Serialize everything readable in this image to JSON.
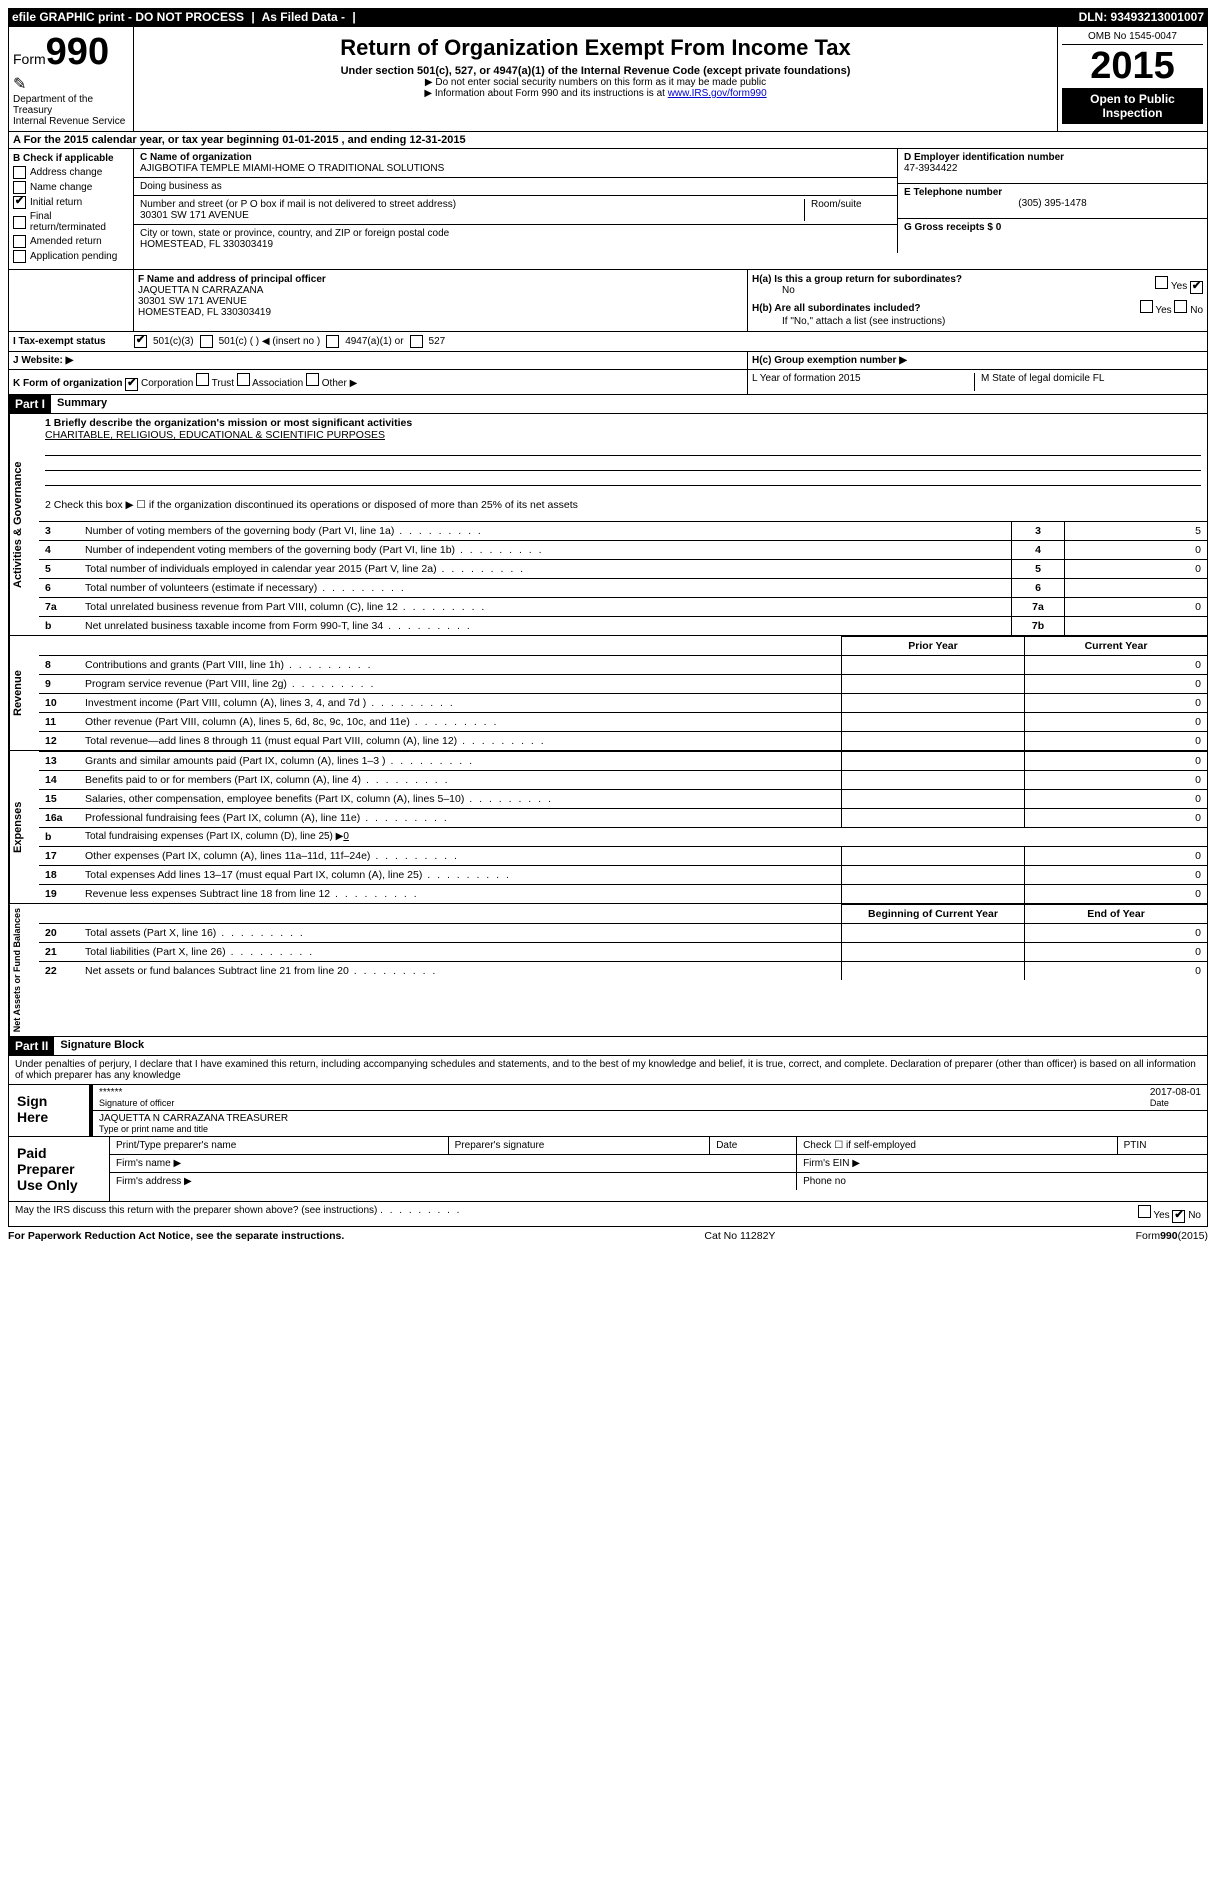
{
  "top_bar": {
    "efile": "efile GRAPHIC print - DO NOT PROCESS",
    "as_filed": "As Filed Data -",
    "dln": "DLN: 93493213001007"
  },
  "header": {
    "form_prefix": "Form",
    "form_number": "990",
    "dept": "Department of the Treasury",
    "irs": "Internal Revenue Service",
    "title": "Return of Organization Exempt From Income Tax",
    "subtitle": "Under section 501(c), 527, or 4947(a)(1) of the Internal Revenue Code (except private foundations)",
    "note1": "▶ Do not enter social security numbers on this form as it may be made public",
    "note2_prefix": "▶ Information about Form 990 and its instructions is at ",
    "note2_link": "www.IRS.gov/form990",
    "omb": "OMB No 1545-0047",
    "year": "2015",
    "inspection": "Open to Public Inspection"
  },
  "row_a": "A  For the 2015 calendar year, or tax year beginning 01-01-2015    , and ending 12-31-2015",
  "section_b": {
    "label": "B Check if applicable",
    "items": [
      "Address change",
      "Name change",
      "Initial return",
      "Final return/terminated",
      "Amended return",
      "Application pending"
    ],
    "checked_idx": 2
  },
  "section_c": {
    "name_label": "C Name of organization",
    "name": "AJIGBOTIFA TEMPLE MIAMI-HOME O TRADITIONAL SOLUTIONS",
    "dba_label": "Doing business as",
    "addr_label": "Number and street (or P O  box if mail is not delivered to street address)",
    "room_label": "Room/suite",
    "addr": "30301 SW 171 AVENUE",
    "city_label": "City or town, state or province, country, and ZIP or foreign postal code",
    "city": "HOMESTEAD, FL  330303419"
  },
  "section_de": {
    "d_label": "D Employer identification number",
    "d_val": "47-3934422",
    "e_label": "E Telephone number",
    "e_val": "(305) 395-1478",
    "g_label": "G Gross receipts $ 0"
  },
  "section_f": {
    "label": "F Name and address of principal officer",
    "name": "JAQUETTA N CARRAZANA",
    "addr1": "30301 SW 171 AVENUE",
    "addr2": "HOMESTEAD, FL  330303419"
  },
  "section_h": {
    "ha": "H(a)  Is this a group return for subordinates?",
    "ha_no": "No",
    "hb": "H(b)  Are all subordinates included?",
    "hb_note": "If \"No,\" attach a list  (see instructions)",
    "hc": "H(c)   Group exemption number ▶"
  },
  "row_i": {
    "label": "I  Tax-exempt status",
    "opt1": "501(c)(3)",
    "opt2": "501(c) (  ) ◀ (insert no )",
    "opt3": "4947(a)(1) or",
    "opt4": "527"
  },
  "row_j": "J  Website: ▶",
  "row_k": {
    "label": "K Form of organization",
    "opts": [
      "Corporation",
      "Trust",
      "Association",
      "Other ▶"
    ],
    "l_label": "L Year of formation  2015",
    "m_label": "M State of legal domicile  FL"
  },
  "part1": {
    "header": "Part I",
    "title": "Summary",
    "q1_label": "1 Briefly describe the organization's mission or most significant activities",
    "q1_val": "CHARITABLE, RELIGIOUS, EDUCATIONAL & SCIENTIFIC PURPOSES",
    "q2": "2  Check this box ▶ ☐ if the organization discontinued its operations or disposed of more than 25% of its net assets",
    "governance_rows": [
      {
        "n": "3",
        "t": "Number of voting members of the governing body (Part VI, line 1a)",
        "box": "3",
        "v": "5"
      },
      {
        "n": "4",
        "t": "Number of independent voting members of the governing body (Part VI, line 1b)",
        "box": "4",
        "v": "0"
      },
      {
        "n": "5",
        "t": "Total number of individuals employed in calendar year 2015 (Part V, line 2a)",
        "box": "5",
        "v": "0"
      },
      {
        "n": "6",
        "t": "Total number of volunteers (estimate if necessary)",
        "box": "6",
        "v": ""
      },
      {
        "n": "7a",
        "t": "Total unrelated business revenue from Part VIII, column (C), line 12",
        "box": "7a",
        "v": "0"
      },
      {
        "n": "b",
        "t": "Net unrelated business taxable income from Form 990-T, line 34",
        "box": "7b",
        "v": ""
      }
    ],
    "prior_year": "Prior Year",
    "current_year": "Current Year",
    "revenue_rows": [
      {
        "n": "8",
        "t": "Contributions and grants (Part VIII, line 1h)",
        "p": "",
        "c": "0"
      },
      {
        "n": "9",
        "t": "Program service revenue (Part VIII, line 2g)",
        "p": "",
        "c": "0"
      },
      {
        "n": "10",
        "t": "Investment income (Part VIII, column (A), lines 3, 4, and 7d )",
        "p": "",
        "c": "0"
      },
      {
        "n": "11",
        "t": "Other revenue (Part VIII, column (A), lines 5, 6d, 8c, 9c, 10c, and 11e)",
        "p": "",
        "c": "0"
      },
      {
        "n": "12",
        "t": "Total revenue—add lines 8 through 11 (must equal Part VIII, column (A), line 12)",
        "p": "",
        "c": "0"
      }
    ],
    "expense_rows": [
      {
        "n": "13",
        "t": "Grants and similar amounts paid (Part IX, column (A), lines 1–3 )",
        "p": "",
        "c": "0"
      },
      {
        "n": "14",
        "t": "Benefits paid to or for members (Part IX, column (A), line 4)",
        "p": "",
        "c": "0"
      },
      {
        "n": "15",
        "t": "Salaries, other compensation, employee benefits (Part IX, column (A), lines 5–10)",
        "p": "",
        "c": "0"
      },
      {
        "n": "16a",
        "t": "Professional fundraising fees (Part IX, column (A), line 11e)",
        "p": "",
        "c": "0"
      },
      {
        "n": "b",
        "t": "Total fundraising expenses (Part IX, column (D), line 25) ▶",
        "p": "",
        "c": "",
        "special": "0"
      },
      {
        "n": "17",
        "t": "Other expenses (Part IX, column (A), lines 11a–11d, 11f–24e)",
        "p": "",
        "c": "0"
      },
      {
        "n": "18",
        "t": "Total expenses  Add lines 13–17 (must equal Part IX, column (A), line 25)",
        "p": "",
        "c": "0"
      },
      {
        "n": "19",
        "t": "Revenue less expenses  Subtract line 18 from line 12",
        "p": "",
        "c": "0"
      }
    ],
    "begin_year": "Beginning of Current Year",
    "end_year": "End of Year",
    "net_rows": [
      {
        "n": "20",
        "t": "Total assets (Part X, line 16)",
        "p": "",
        "c": "0"
      },
      {
        "n": "21",
        "t": "Total liabilities (Part X, line 26)",
        "p": "",
        "c": "0"
      },
      {
        "n": "22",
        "t": "Net assets or fund balances  Subtract line 21 from line 20",
        "p": "",
        "c": "0"
      }
    ]
  },
  "part2": {
    "header": "Part II",
    "title": "Signature Block",
    "perjury": "Under penalties of perjury, I declare that I have examined this return, including accompanying schedules and statements, and to the best of my knowledge and belief, it is true, correct, and complete. Declaration of preparer (other than officer) is based on all information of which preparer has any knowledge",
    "sign_here": "Sign Here",
    "sig_stars": "******",
    "sig_date": "2017-08-01",
    "sig_officer": "Signature of officer",
    "date_label": "Date",
    "officer_name": "JAQUETTA N CARRAZANA TREASURER",
    "type_name": "Type or print name and title",
    "paid": "Paid Preparer Use Only",
    "prep_name": "Print/Type preparer's name",
    "prep_sig": "Preparer's signature",
    "check_self": "Check ☐ if self-employed",
    "ptin": "PTIN",
    "firm_name": "Firm's name    ▶",
    "firm_ein": "Firm's EIN ▶",
    "firm_addr": "Firm's address ▶",
    "phone": "Phone no",
    "may_irs": "May the IRS discuss this return with the preparer shown above? (see instructions)",
    "yes": "Yes",
    "no": "No"
  },
  "footer": {
    "left": "For Paperwork Reduction Act Notice, see the separate instructions.",
    "mid": "Cat  No  11282Y",
    "right": "Form 990 (2015)"
  }
}
